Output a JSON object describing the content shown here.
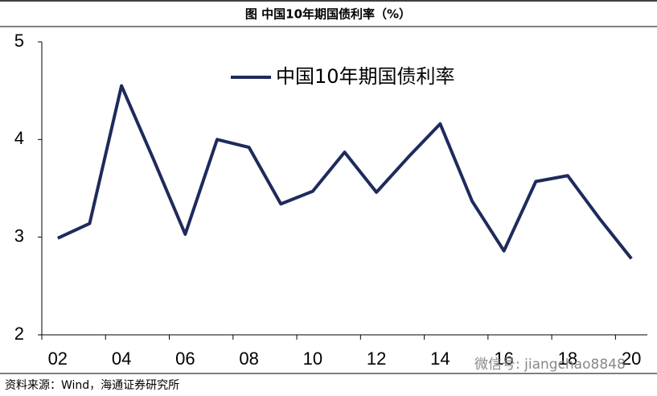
{
  "chart_data": {
    "type": "line",
    "title": "图  中国10年期国债利率（%）",
    "categories": [
      "02",
      null,
      "04",
      null,
      "06",
      null,
      "08",
      null,
      "10",
      null,
      "12",
      null,
      "14",
      null,
      "16",
      null,
      "18",
      null,
      "20"
    ],
    "series": [
      {
        "name": "中国10年期国债利率",
        "color": "#1f2a5c",
        "values": [
          2.99,
          3.14,
          4.55,
          3.8,
          3.03,
          4.0,
          3.92,
          3.34,
          3.47,
          3.87,
          3.46,
          3.82,
          4.16,
          3.37,
          2.86,
          3.57,
          3.63,
          3.19,
          2.78
        ]
      }
    ],
    "ylim": [
      2,
      5
    ],
    "yticks": [
      2,
      3,
      4,
      5
    ],
    "grid": false,
    "legend": "top",
    "source": "资料来源：Wind，海通证券研究所",
    "watermark": "微信号: jiangchao8848"
  }
}
